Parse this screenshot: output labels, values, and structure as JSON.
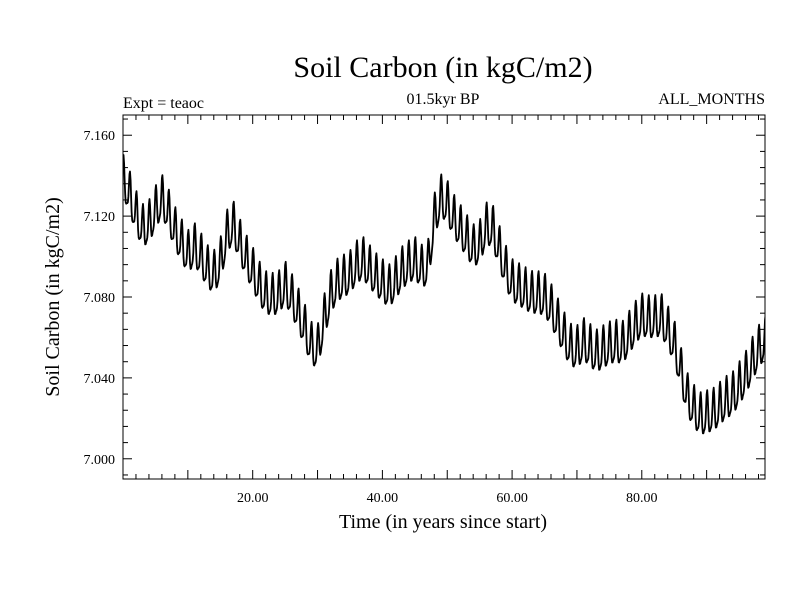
{
  "chart_data": {
    "type": "line",
    "title": "Soil Carbon (in kgC/m2)",
    "subtitle": "01.5kyr BP",
    "left_label": "Expt = teaoc",
    "right_label": "ALL_MONTHS",
    "xlabel": "Time (in years since start)",
    "ylabel": "Soil Carbon (in kgC/m2)",
    "xlim": [
      0,
      99
    ],
    "ylim": [
      6.99,
      7.17
    ],
    "xticks": [
      20,
      40,
      60,
      80
    ],
    "xtick_labels": [
      "20.00",
      "40.00",
      "60.00",
      "80.00"
    ],
    "yticks": [
      7.0,
      7.04,
      7.08,
      7.12,
      7.16
    ],
    "ytick_labels": [
      "7.000",
      "7.040",
      "7.080",
      "7.120",
      "7.160"
    ],
    "grid": false,
    "series": [
      {
        "name": "Soil Carbon",
        "color": "#000000",
        "sampling": "yearly mean with seasonal cycle (12 samples per year)",
        "x": [
          0,
          1,
          2,
          3,
          4,
          5,
          6,
          7,
          8,
          9,
          10,
          11,
          12,
          13,
          14,
          15,
          16,
          17,
          18,
          19,
          20,
          21,
          22,
          23,
          24,
          25,
          26,
          27,
          28,
          29,
          30,
          31,
          32,
          33,
          34,
          35,
          36,
          37,
          38,
          39,
          40,
          41,
          42,
          43,
          44,
          45,
          46,
          47,
          48,
          49,
          50,
          51,
          52,
          53,
          54,
          55,
          56,
          57,
          58,
          59,
          60,
          61,
          62,
          63,
          64,
          65,
          66,
          67,
          68,
          69,
          70,
          71,
          72,
          73,
          74,
          75,
          76,
          77,
          78,
          79,
          80,
          81,
          82,
          83,
          84,
          85,
          86,
          87,
          88,
          89,
          90,
          91,
          92,
          93,
          94,
          95,
          96,
          97,
          98,
          99
        ],
        "mean": [
          7.138,
          7.13,
          7.12,
          7.113,
          7.115,
          7.122,
          7.128,
          7.121,
          7.112,
          7.106,
          7.1,
          7.104,
          7.099,
          7.093,
          7.09,
          7.096,
          7.11,
          7.115,
          7.106,
          7.098,
          7.092,
          7.085,
          7.08,
          7.079,
          7.08,
          7.085,
          7.079,
          7.072,
          7.064,
          7.055,
          7.053,
          7.068,
          7.08,
          7.086,
          7.088,
          7.09,
          7.095,
          7.097,
          7.093,
          7.089,
          7.086,
          7.083,
          7.087,
          7.092,
          7.095,
          7.097,
          7.093,
          7.094,
          7.118,
          7.128,
          7.125,
          7.118,
          7.113,
          7.108,
          7.103,
          7.105,
          7.114,
          7.113,
          7.103,
          7.093,
          7.086,
          7.084,
          7.082,
          7.08,
          7.08,
          7.079,
          7.074,
          7.067,
          7.06,
          7.054,
          7.053,
          7.057,
          7.054,
          7.051,
          7.053,
          7.055,
          7.056,
          7.055,
          7.06,
          7.065,
          7.069,
          7.068,
          7.068,
          7.069,
          7.063,
          7.056,
          7.043,
          7.03,
          7.024,
          7.02,
          7.021,
          7.022,
          7.025,
          7.028,
          7.03,
          7.035,
          7.04,
          7.047,
          7.053,
          7.058
        ],
        "amplitude": 0.01
      }
    ]
  }
}
